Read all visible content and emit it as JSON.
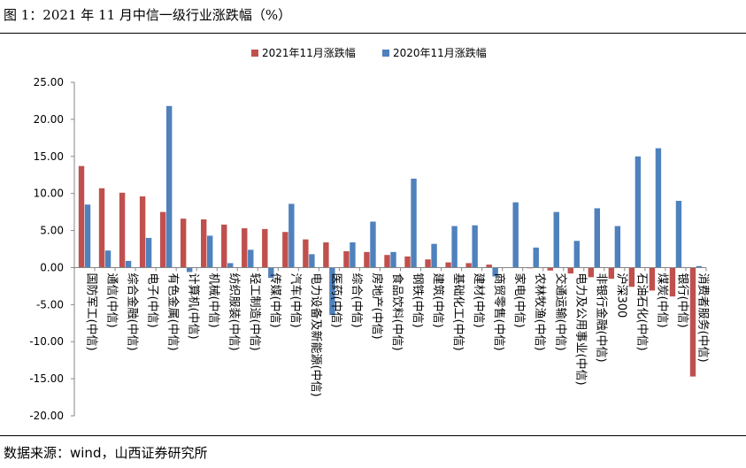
{
  "figure_title": "图 1：2021 年 11 月中信一级行业涨跌幅（%）",
  "source_note": "数据来源：wind，山西证券研究所",
  "colors": {
    "series_2021": "#C0504D",
    "series_2020": "#4F81BD",
    "axis": "#868686"
  },
  "chart_data": {
    "type": "bar",
    "title": "",
    "xlabel": "",
    "ylabel": "",
    "ylim": [
      -20,
      25
    ],
    "yticks": [
      "-20.00",
      "-15.00",
      "-10.00",
      "-5.00",
      "0.00",
      "5.00",
      "10.00",
      "15.00",
      "20.00",
      "25.00"
    ],
    "grid": false,
    "legend_position": "top-center",
    "categories": [
      "国防军工(中信)",
      "通信(中信)",
      "综合金融(中信)",
      "电子(中信)",
      "有色金属(中信)",
      "计算机(中信)",
      "机械(中信)",
      "纺织服装(中信)",
      "轻工制造(中信)",
      "传媒(中信)",
      "汽车(中信)",
      "电力设备及新能源(中信)",
      "医药(中信)",
      "综合(中信)",
      "房地产(中信)",
      "食品饮料(中信)",
      "钢铁(中信)",
      "建筑(中信)",
      "基础化工(中信)",
      "建材(中信)",
      "商贸零售(中信)",
      "家电(中信)",
      "农林牧渔(中信)",
      "交通运输(中信)",
      "电力及公用事业(中信)",
      "非银行金融(中信)",
      "沪深300",
      "石油石化(中信)",
      "煤炭(中信)",
      "银行(中信)",
      "消费者服务(中信)"
    ],
    "series": [
      {
        "name": "2021年11月涨跌幅",
        "values": [
          13.7,
          10.7,
          10.1,
          9.6,
          7.5,
          6.6,
          6.5,
          5.8,
          5.3,
          5.2,
          4.8,
          3.8,
          3.4,
          2.2,
          2.1,
          1.7,
          1.5,
          1.1,
          0.7,
          0.6,
          0.4,
          0.0,
          -0.1,
          -0.4,
          -0.8,
          -1.3,
          -1.5,
          -2.6,
          -3.1,
          -3.9,
          -14.7
        ]
      },
      {
        "name": "2020年11月涨跌幅",
        "values": [
          8.5,
          2.3,
          0.9,
          4.0,
          21.8,
          -0.6,
          4.3,
          0.6,
          2.4,
          -1.4,
          8.6,
          1.8,
          -6.4,
          3.4,
          6.2,
          2.1,
          12.0,
          3.2,
          5.6,
          5.7,
          -1.2,
          8.8,
          2.7,
          7.5,
          3.6,
          8.0,
          5.6,
          15.0,
          16.1,
          9.0,
          0.2
        ]
      }
    ]
  }
}
